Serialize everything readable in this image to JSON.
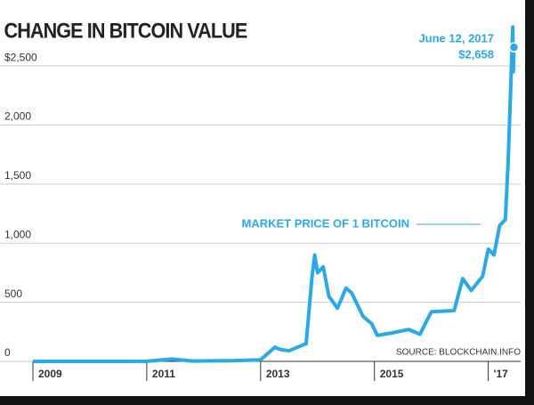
{
  "chart_data": {
    "type": "line",
    "title": "CHANGE IN BITCOIN VALUE",
    "series": [
      {
        "name": "MARKET PRICE OF 1 BITCOIN",
        "color": "#29a9e9",
        "x": [
          2009.0,
          2010.5,
          2011.0,
          2011.45,
          2011.8,
          2012.5,
          2013.0,
          2013.25,
          2013.35,
          2013.5,
          2013.8,
          2013.9,
          2013.95,
          2014.0,
          2014.1,
          2014.2,
          2014.35,
          2014.5,
          2014.6,
          2014.8,
          2014.95,
          2015.05,
          2015.3,
          2015.6,
          2015.8,
          2016.0,
          2016.4,
          2016.55,
          2016.7,
          2016.9,
          2017.0,
          2017.1,
          2017.2,
          2017.3,
          2017.35,
          2017.4,
          2017.43,
          2017.44,
          2017.45
        ],
        "values": [
          0,
          0,
          1,
          20,
          3,
          6,
          13,
          120,
          100,
          90,
          150,
          700,
          900,
          750,
          800,
          550,
          450,
          620,
          580,
          380,
          320,
          220,
          240,
          270,
          230,
          420,
          430,
          700,
          600,
          720,
          950,
          900,
          1150,
          1200,
          1700,
          2400,
          2830,
          2450,
          2658
        ]
      }
    ],
    "xlim": [
      2009,
      2017.6
    ],
    "xticks": [
      2009,
      2011,
      2013,
      2015,
      {
        "value": 2017,
        "label": "'17"
      }
    ],
    "ylim": [
      0,
      2900
    ],
    "yticks": [
      0,
      {
        "value": 500,
        "label": "500"
      },
      {
        "value": 1000,
        "label": "1,000"
      },
      {
        "value": 1500,
        "label": "1,500"
      },
      {
        "value": 2000,
        "label": "2,000"
      },
      {
        "value": 2500,
        "label": "$2,500"
      }
    ],
    "grid": true,
    "annotations": [
      "June 12, 2017",
      "$2,658"
    ],
    "source": "SOURCE: BLOCKCHAIN.INFO"
  }
}
